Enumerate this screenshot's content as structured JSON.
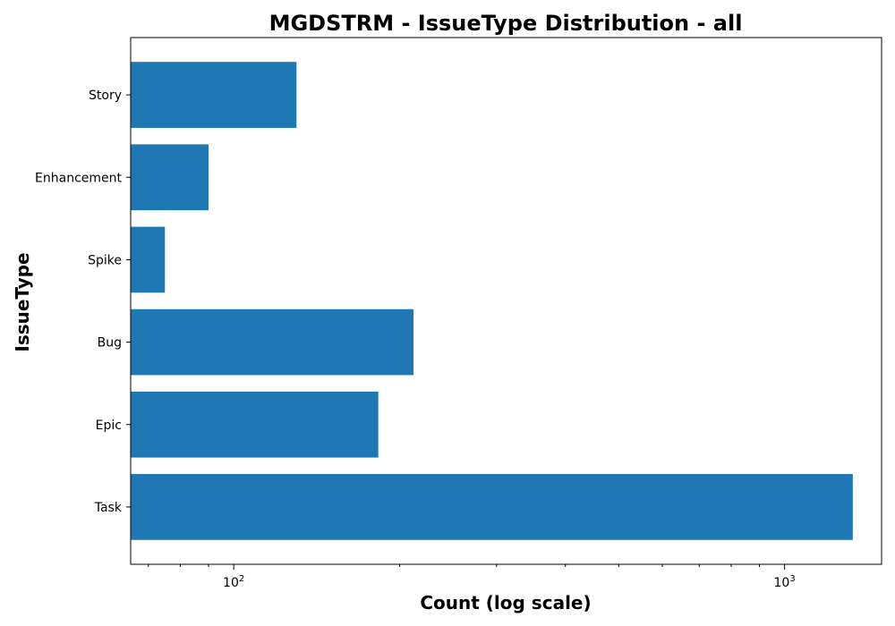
{
  "chart_data": {
    "type": "bar",
    "orientation": "horizontal",
    "title": "MGDSTRM - IssueType Distribution - all",
    "xlabel": "Count (log scale)",
    "ylabel": "IssueType",
    "x_scale": "log",
    "xlim": [
      65,
      1500
    ],
    "x_ticks": [
      {
        "value": 100,
        "base": "10",
        "exponent": "2"
      },
      {
        "value": 1000,
        "base": "10",
        "exponent": "3"
      }
    ],
    "grid": false,
    "categories": [
      "Story",
      "Enhancement",
      "Spike",
      "Bug",
      "Epic",
      "Task"
    ],
    "values": [
      130,
      90,
      75,
      212,
      183,
      1330
    ],
    "color": "#1f77b4"
  }
}
